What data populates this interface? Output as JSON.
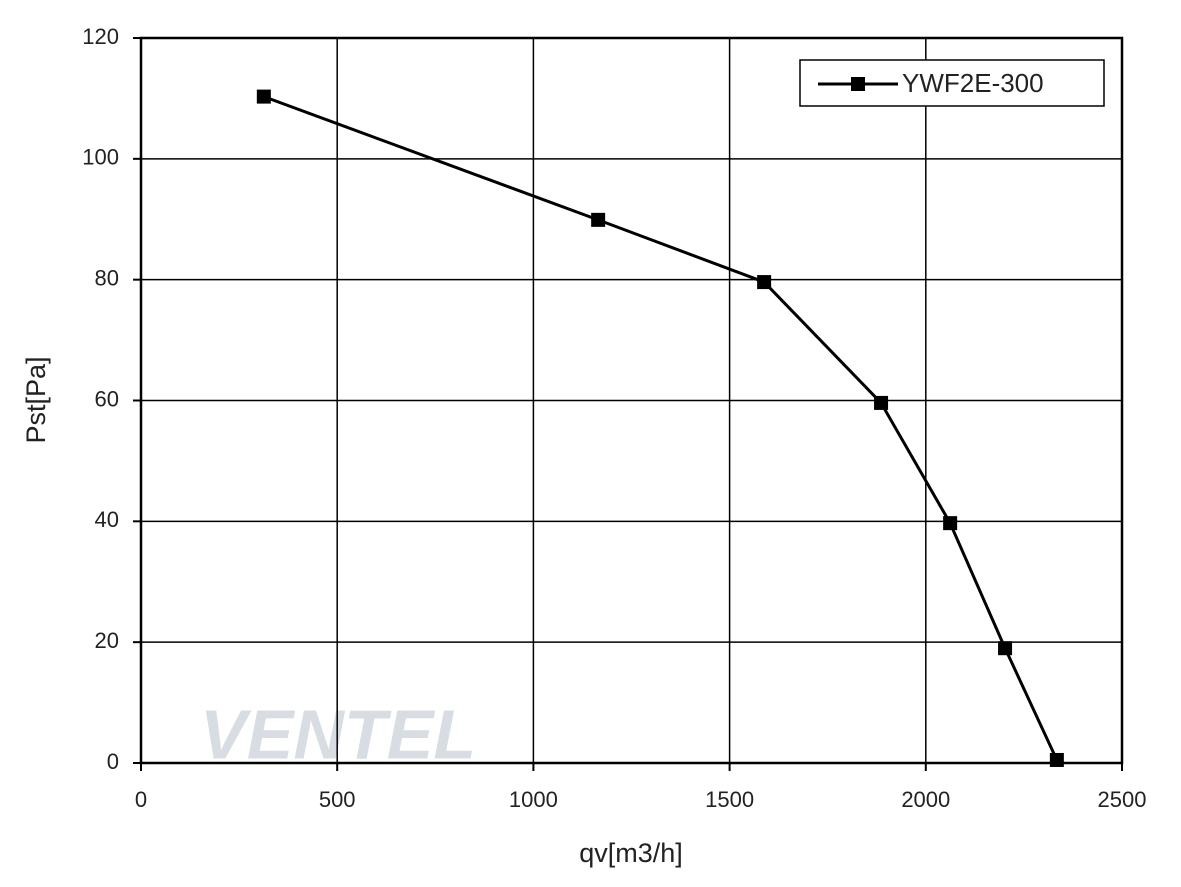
{
  "chart_data": {
    "type": "line",
    "x_label": "qv[m3/h]",
    "y_label": "Pst[Pa]",
    "watermark": "VENTEL",
    "x": [
      313,
      1165,
      1588,
      1886,
      2062,
      2202,
      2334
    ],
    "series": [
      {
        "name": "YWF2E-300",
        "color": "#000000",
        "values": [
          110.3,
          89.9,
          79.6,
          59.6,
          39.7,
          19.0,
          0.5
        ]
      }
    ],
    "xlim": [
      0,
      2500
    ],
    "xticks": [
      0,
      500,
      1000,
      1500,
      2000,
      2500
    ],
    "ylim": [
      0,
      120
    ],
    "yticks": [
      0,
      20,
      40,
      60,
      80,
      100,
      120
    ],
    "grid": true,
    "legend": "top-right"
  }
}
